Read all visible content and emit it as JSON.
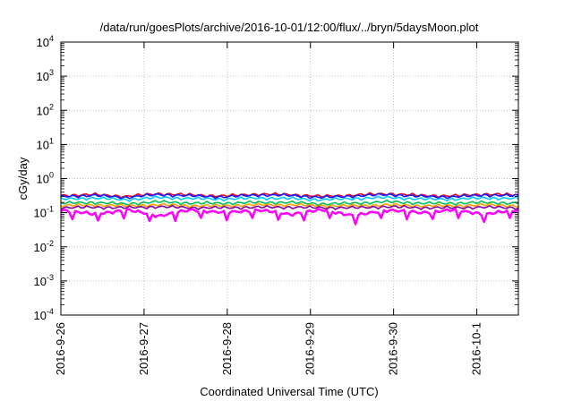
{
  "chart_data": {
    "type": "line",
    "title": "/data/run/goesPlots/archive/2016-10-01/12:00/flux/../bryn/5daysMoon.plot",
    "xlabel": "Coordinated Universal Time (UTC)",
    "ylabel": "cGy/day",
    "x_ticks": [
      "2016-9-26",
      "2016-9-27",
      "2016-9-28",
      "2016-9-29",
      "2016-9-30",
      "2016-10-1"
    ],
    "xlim": [
      "2016-09-26T00:00",
      "2016-10-01T12:00"
    ],
    "y_scale": "log",
    "ylim": [
      0.0001,
      10000
    ],
    "y_ticks": [
      {
        "base": "10",
        "exp": "-4",
        "value": 0.0001
      },
      {
        "base": "10",
        "exp": "-3",
        "value": 0.001
      },
      {
        "base": "10",
        "exp": "-2",
        "value": 0.01
      },
      {
        "base": "10",
        "exp": "-1",
        "value": 0.1
      },
      {
        "base": "10",
        "exp": "0",
        "value": 1
      },
      {
        "base": "10",
        "exp": "1",
        "value": 10
      },
      {
        "base": "10",
        "exp": "2",
        "value": 100
      },
      {
        "base": "10",
        "exp": "3",
        "value": 1000
      },
      {
        "base": "10",
        "exp": "4",
        "value": 10000
      }
    ],
    "grid": true,
    "legend": "none",
    "series": [
      {
        "color": "#e8001c",
        "values": [
          0.32,
          0.34,
          0.3,
          0.36,
          0.33,
          0.31,
          0.35,
          0.34,
          0.3,
          0.33,
          0.36,
          0.32,
          0.31,
          0.35,
          0.33
        ]
      },
      {
        "color": "#1a1aff",
        "values": [
          0.3,
          0.32,
          0.28,
          0.34,
          0.31,
          0.29,
          0.33,
          0.32,
          0.28,
          0.31,
          0.34,
          0.3,
          0.29,
          0.33,
          0.31
        ]
      },
      {
        "color": "#00c8ff",
        "values": [
          0.25,
          0.27,
          0.24,
          0.28,
          0.26,
          0.25,
          0.27,
          0.26,
          0.24,
          0.26,
          0.28,
          0.25,
          0.25,
          0.27,
          0.26
        ]
      },
      {
        "color": "#00c060",
        "values": [
          0.19,
          0.2,
          0.18,
          0.21,
          0.19,
          0.19,
          0.2,
          0.2,
          0.18,
          0.19,
          0.21,
          0.19,
          0.19,
          0.2,
          0.19
        ]
      },
      {
        "color": "#ffa000",
        "values": [
          0.16,
          0.17,
          0.16,
          0.17,
          0.16,
          0.16,
          0.17,
          0.17,
          0.16,
          0.16,
          0.17,
          0.16,
          0.16,
          0.17,
          0.16
        ]
      },
      {
        "color": "#8000a0",
        "values": [
          0.14,
          0.145,
          0.14,
          0.15,
          0.14,
          0.14,
          0.145,
          0.145,
          0.14,
          0.14,
          0.15,
          0.14,
          0.14,
          0.145,
          0.14
        ]
      },
      {
        "color": "#ff00ff",
        "values": [
          0.12,
          0.09,
          0.12,
          0.08,
          0.12,
          0.1,
          0.12,
          0.09,
          0.12,
          0.08,
          0.12,
          0.1,
          0.12,
          0.09,
          0.12
        ]
      }
    ]
  }
}
